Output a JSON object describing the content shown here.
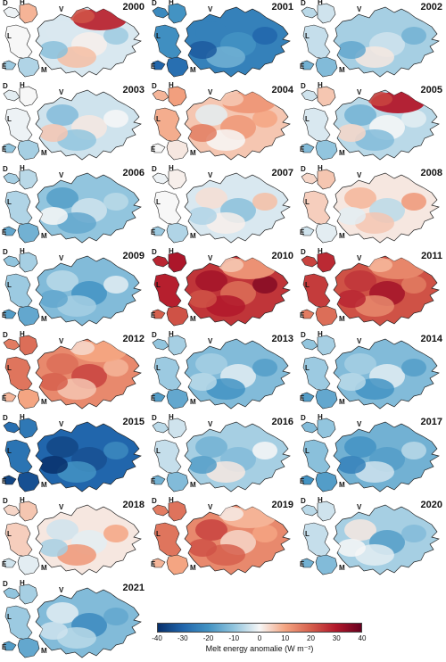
{
  "region_labels": {
    "D": "D",
    "H": "H",
    "V": "V",
    "L": "L",
    "E": "E",
    "M": "M"
  },
  "panels": [
    {
      "year": "2000",
      "v": -3,
      "s": 0,
      "spot": 28
    },
    {
      "year": "2001",
      "v": -24,
      "s": 0,
      "spot": 0
    },
    {
      "year": "2002",
      "v": -8,
      "s": 0,
      "spot": 0
    },
    {
      "year": "2003",
      "v": -4,
      "s": 1,
      "spot": 0
    },
    {
      "year": "2004",
      "v": 6,
      "s": 1,
      "spot": 12
    },
    {
      "year": "2005",
      "v": -6,
      "s": 1,
      "spot": 30
    },
    {
      "year": "2006",
      "v": -10,
      "s": 1,
      "spot": 0
    },
    {
      "year": "2007",
      "v": -3,
      "s": 2,
      "spot": 0
    },
    {
      "year": "2008",
      "v": 2,
      "s": 2,
      "spot": 0
    },
    {
      "year": "2009",
      "v": -12,
      "s": 2,
      "spot": 0
    },
    {
      "year": "2010",
      "v": 26,
      "s": 2,
      "spot": 12
    },
    {
      "year": "2011",
      "v": 22,
      "s": 3,
      "spot": 14
    },
    {
      "year": "2012",
      "v": 14,
      "s": 3,
      "spot": 10
    },
    {
      "year": "2013",
      "v": -12,
      "s": 3,
      "spot": 0
    },
    {
      "year": "2014",
      "v": -12,
      "s": 3,
      "spot": 0
    },
    {
      "year": "2015",
      "v": -30,
      "s": 4,
      "spot": 0
    },
    {
      "year": "2016",
      "v": -8,
      "s": 4,
      "spot": 0
    },
    {
      "year": "2017",
      "v": -14,
      "s": 4,
      "spot": 0
    },
    {
      "year": "2018",
      "v": 2,
      "s": 4,
      "spot": 0
    },
    {
      "year": "2019",
      "v": 14,
      "s": 5,
      "spot": 8
    },
    {
      "year": "2020",
      "v": -8,
      "s": 5,
      "spot": 0
    },
    {
      "year": "2021",
      "v": -12,
      "s": 5,
      "spot": 0
    }
  ],
  "colorbar": {
    "min": -40,
    "max": 40,
    "ticks": [
      "-40",
      "-30",
      "-20",
      "-10",
      "0",
      "10",
      "20",
      "30",
      "40"
    ],
    "label": "Melt energy anomalie (W m⁻²)",
    "colors": [
      "#08306b",
      "#2166ac",
      "#4393c3",
      "#92c5de",
      "#f7f7f7",
      "#f4a582",
      "#d6604d",
      "#b2182b",
      "#67001f"
    ]
  }
}
